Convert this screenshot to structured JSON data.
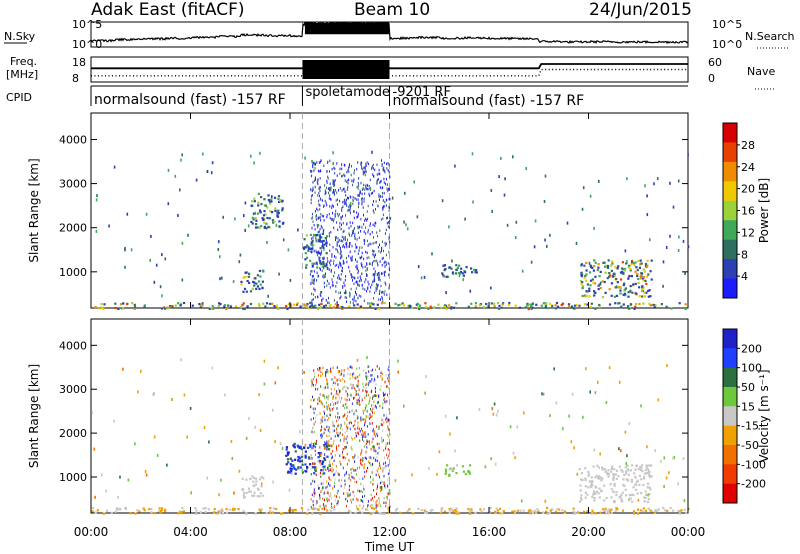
{
  "header": {
    "station": "Adak East (fitACF)",
    "beam": "Beam 10",
    "date": "24/Jun/2015"
  },
  "chart_data": [
    {
      "type": "line",
      "name": "sky-noise-panel",
      "ylabel_left": "N.Sky",
      "ylabel_right": "N.Search",
      "left_ticks": [
        "10^5",
        "10^0"
      ],
      "right_ticks": [
        "10^5",
        "10^0"
      ],
      "series": [
        {
          "name": "N.Sky",
          "style": "solid",
          "x_hours": [
            0,
            1,
            2,
            3,
            4,
            5,
            6,
            7,
            8.5,
            9,
            10,
            11,
            12,
            13,
            14,
            15,
            16,
            17,
            18,
            19,
            20,
            21,
            22,
            23,
            24
          ],
          "level_fraction": [
            0.25,
            0.3,
            0.33,
            0.35,
            0.38,
            0.42,
            0.48,
            0.45,
            0.9,
            0.92,
            0.95,
            0.92,
            0.35,
            0.38,
            0.35,
            0.36,
            0.34,
            0.33,
            0.22,
            0.2,
            0.21,
            0.2,
            0.2,
            0.2,
            0.2
          ]
        },
        {
          "name": "N.Search",
          "style": "dotted"
        }
      ]
    },
    {
      "type": "line",
      "name": "frequency-panel",
      "ylabel_left": "Freq. [MHz]",
      "ylabel_right": "Nave",
      "left_ticks": [
        "18",
        "8"
      ],
      "right_ticks": [
        "60",
        "0"
      ],
      "series": [
        {
          "name": "Freq.",
          "style": "solid",
          "x_hours": [
            0,
            8.5,
            12,
            18,
            18.1,
            24
          ],
          "level_fraction": [
            0.55,
            0.55,
            0.55,
            0.55,
            0.72,
            0.72
          ]
        },
        {
          "name": "Nave",
          "style": "dotted",
          "x_hours": [
            0,
            8.5,
            12,
            18,
            18.1,
            24
          ],
          "level_fraction": [
            0.25,
            0.25,
            0.25,
            0.25,
            0.5,
            0.5
          ]
        }
      ],
      "spoletamode_band_hours": [
        8.5,
        12
      ]
    },
    {
      "type": "table",
      "name": "cpid-panel",
      "label": "CPID",
      "segments": [
        {
          "start_hour": 0,
          "text": "normalsound (fast) -157 RF"
        },
        {
          "start_hour": 8.5,
          "text": "spoletamode"
        },
        {
          "start_hour": 12,
          "text": "-9201 RF"
        },
        {
          "start_hour": 12,
          "text": "normalsound (fast) -157 RF"
        }
      ]
    },
    {
      "type": "heatmap",
      "name": "power",
      "ylabel": "Slant Range [km]",
      "colorbar_label": "Power [dB]",
      "colorbar_ticks": [
        "28",
        "24",
        "20",
        "16",
        "12",
        "8",
        "4"
      ],
      "colorbar_colors": [
        "#1c1cff",
        "#2c40b4",
        "#2f6f5f",
        "#3fa95a",
        "#9bd23c",
        "#f0c800",
        "#f08c00",
        "#e84000",
        "#d60000"
      ],
      "yticks": [
        "1000",
        "2000",
        "3000",
        "4000"
      ],
      "ylim": [
        180,
        4600
      ],
      "echo_patches": [
        {
          "x0": 6.0,
          "x1": 6.9,
          "r0": 550,
          "r1": 1050,
          "min_dB": 4,
          "max_dB": 22
        },
        {
          "x0": 6.4,
          "x1": 7.7,
          "r0": 2000,
          "r1": 2800,
          "min_dB": 4,
          "max_dB": 18
        },
        {
          "x0": 8.5,
          "x1": 9.5,
          "r0": 1100,
          "r1": 1900,
          "min_dB": 4,
          "max_dB": 16
        },
        {
          "x0": 8.8,
          "x1": 12.0,
          "r0": 300,
          "r1": 3550,
          "min_dB": 1,
          "max_dB": 10
        },
        {
          "x0": 19.6,
          "x1": 22.5,
          "r0": 450,
          "r1": 1300,
          "min_dB": 4,
          "max_dB": 26
        },
        {
          "x0": 14.0,
          "x1": 15.5,
          "r0": 900,
          "r1": 1200,
          "min_dB": 4,
          "max_dB": 14
        },
        {
          "x0": 0.0,
          "x1": 24.0,
          "r0": 180,
          "r1": 320,
          "min_dB": 4,
          "max_dB": 28
        }
      ]
    },
    {
      "type": "heatmap",
      "name": "velocity",
      "ylabel": "Slant Range [km]",
      "colorbar_label": "Velocity [m s⁻¹]",
      "colorbar_ticks": [
        "200",
        "100",
        "50",
        "15",
        "-15",
        "-50",
        "-100",
        "-200"
      ],
      "colorbar_colors": [
        "#2020c8",
        "#2040ff",
        "#2c7040",
        "#6ec83c",
        "#c8c8c8",
        "#f0a000",
        "#f07000",
        "#f03c00",
        "#e00000"
      ],
      "yticks": [
        "1000",
        "2000",
        "3000",
        "4000"
      ],
      "ylim": [
        180,
        4600
      ],
      "echo_patches": [
        {
          "x0": 6.0,
          "x1": 6.9,
          "r0": 550,
          "r1": 1050,
          "min_v": -14,
          "max_v": 14
        },
        {
          "x0": 7.8,
          "x1": 9.6,
          "r0": 1100,
          "r1": 1800,
          "min_v": 100,
          "max_v": 250
        },
        {
          "x0": 8.8,
          "x1": 12.0,
          "r0": 300,
          "r1": 3550,
          "min_v": -250,
          "max_v": 250
        },
        {
          "x0": 14.2,
          "x1": 15.3,
          "r0": 1050,
          "r1": 1300,
          "min_v": 20,
          "max_v": 60
        },
        {
          "x0": 19.6,
          "x1": 22.5,
          "r0": 450,
          "r1": 1300,
          "min_v": -14,
          "max_v": 14
        },
        {
          "x0": 0.0,
          "x1": 24.0,
          "r0": 180,
          "r1": 320,
          "min_v": -80,
          "max_v": 20
        }
      ]
    }
  ],
  "xaxis": {
    "label": "Time UT",
    "ticks": [
      "00:00",
      "04:00",
      "08:00",
      "12:00",
      "16:00",
      "20:00",
      "00:00"
    ],
    "xlim_hours": [
      0,
      24
    ]
  }
}
